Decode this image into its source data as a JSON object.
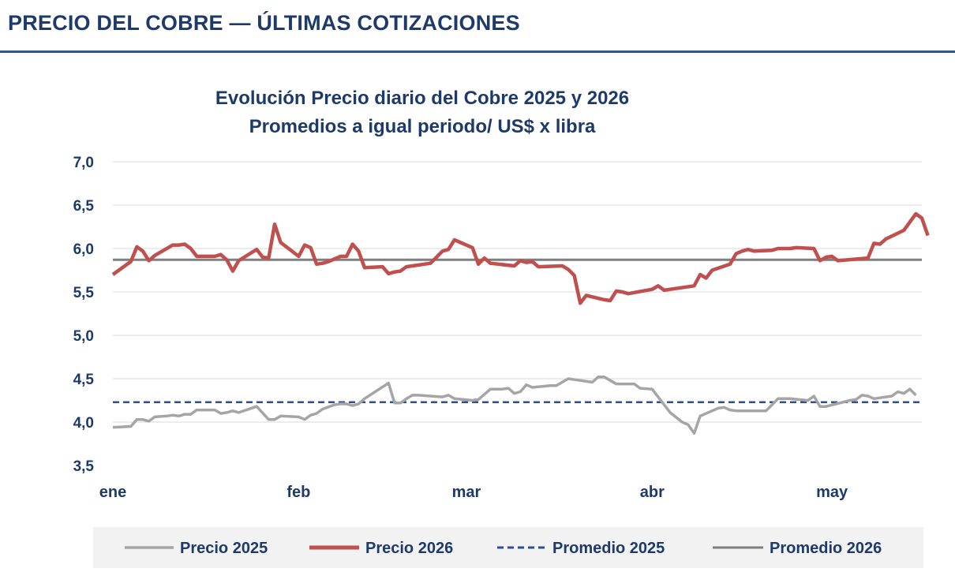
{
  "page": {
    "title": "PRECIO DEL COBRE — ÚLTIMAS COTIZACIONES"
  },
  "chart_data": {
    "type": "line",
    "title": "Evolución Precio diario del Cobre 2025 y 2026",
    "subtitle": "Promedios a igual periodo/ US$ x libra",
    "ylim": [
      3.5,
      7.0
    ],
    "yticks": [
      "3,5",
      "4,0",
      "4,5",
      "5,0",
      "5,5",
      "6,0",
      "6,5",
      "7,0"
    ],
    "ytick_values": [
      3.5,
      4.0,
      4.5,
      5.0,
      5.5,
      6.0,
      6.5,
      7.0
    ],
    "x_range": [
      1,
      136
    ],
    "xticks": [
      {
        "label": "ene",
        "x": 1
      },
      {
        "label": "feb",
        "x": 32
      },
      {
        "label": "mar",
        "x": 60
      },
      {
        "label": "abr",
        "x": 91
      },
      {
        "label": "may",
        "x": 121
      }
    ],
    "grid": true,
    "legend_position": "bottom",
    "colors": {
      "precio_2025": "#a5a5a5",
      "precio_2026": "#c0504d",
      "promedio_2025": "#2f4f8f",
      "promedio_2026": "#7f7f7f",
      "text": "#1d3a6b",
      "grid": "#d9d9d9",
      "legend_bg": "#f2f2f2"
    },
    "series": [
      {
        "name": "Precio 2025",
        "points": [
          [
            1,
            3.94
          ],
          [
            4,
            3.95
          ],
          [
            5,
            4.03
          ],
          [
            6,
            4.03
          ],
          [
            7,
            4.01
          ],
          [
            8,
            4.06
          ],
          [
            10,
            4.07
          ],
          [
            11,
            4.08
          ],
          [
            12,
            4.07
          ],
          [
            13,
            4.09
          ],
          [
            14,
            4.09
          ],
          [
            15,
            4.14
          ],
          [
            18,
            4.14
          ],
          [
            19,
            4.1
          ],
          [
            20,
            4.11
          ],
          [
            21,
            4.13
          ],
          [
            22,
            4.11
          ],
          [
            25,
            4.18
          ],
          [
            27,
            4.03
          ],
          [
            28,
            4.03
          ],
          [
            29,
            4.07
          ],
          [
            32,
            4.06
          ],
          [
            33,
            4.03
          ],
          [
            34,
            4.08
          ],
          [
            35,
            4.1
          ],
          [
            36,
            4.15
          ],
          [
            38,
            4.2
          ],
          [
            39,
            4.21
          ],
          [
            40,
            4.21
          ],
          [
            41,
            4.19
          ],
          [
            42,
            4.21
          ],
          [
            43,
            4.27
          ],
          [
            47,
            4.45
          ],
          [
            48,
            4.22
          ],
          [
            49,
            4.22
          ],
          [
            50,
            4.27
          ],
          [
            51,
            4.31
          ],
          [
            52,
            4.31
          ],
          [
            56,
            4.29
          ],
          [
            57,
            4.31
          ],
          [
            58,
            4.27
          ],
          [
            61,
            4.25
          ],
          [
            62,
            4.26
          ],
          [
            64,
            4.38
          ],
          [
            66,
            4.38
          ],
          [
            67,
            4.39
          ],
          [
            68,
            4.33
          ],
          [
            69,
            4.35
          ],
          [
            70,
            4.43
          ],
          [
            71,
            4.4
          ],
          [
            74,
            4.42
          ],
          [
            75,
            4.42
          ],
          [
            76,
            4.46
          ],
          [
            77,
            4.5
          ],
          [
            80,
            4.47
          ],
          [
            81,
            4.46
          ],
          [
            82,
            4.52
          ],
          [
            83,
            4.52
          ],
          [
            85,
            4.44
          ],
          [
            88,
            4.44
          ],
          [
            89,
            4.39
          ],
          [
            91,
            4.38
          ],
          [
            94,
            4.11
          ],
          [
            96,
            4.0
          ],
          [
            97,
            3.97
          ],
          [
            98,
            3.87
          ],
          [
            99,
            4.07
          ],
          [
            102,
            4.16
          ],
          [
            103,
            4.17
          ],
          [
            104,
            4.14
          ],
          [
            105,
            4.13
          ],
          [
            106,
            4.13
          ],
          [
            110,
            4.13
          ],
          [
            111,
            4.2
          ],
          [
            112,
            4.27
          ],
          [
            114,
            4.27
          ],
          [
            117,
            4.25
          ],
          [
            118,
            4.3
          ],
          [
            119,
            4.18
          ],
          [
            120,
            4.18
          ],
          [
            124,
            4.25
          ],
          [
            125,
            4.26
          ],
          [
            126,
            4.31
          ],
          [
            127,
            4.3
          ],
          [
            128,
            4.27
          ],
          [
            131,
            4.3
          ],
          [
            132,
            4.35
          ],
          [
            133,
            4.33
          ],
          [
            134,
            4.38
          ],
          [
            135,
            4.31
          ]
        ]
      },
      {
        "name": "Precio 2026",
        "points": [
          [
            1,
            5.7
          ],
          [
            4,
            5.85
          ],
          [
            5,
            6.02
          ],
          [
            6,
            5.97
          ],
          [
            7,
            5.86
          ],
          [
            8,
            5.92
          ],
          [
            11,
            6.04
          ],
          [
            12,
            6.04
          ],
          [
            13,
            6.05
          ],
          [
            14,
            6.0
          ],
          [
            15,
            5.91
          ],
          [
            18,
            5.91
          ],
          [
            19,
            5.93
          ],
          [
            20,
            5.87
          ],
          [
            21,
            5.74
          ],
          [
            22,
            5.86
          ],
          [
            25,
            5.99
          ],
          [
            26,
            5.9
          ],
          [
            27,
            5.89
          ],
          [
            28,
            6.28
          ],
          [
            29,
            6.07
          ],
          [
            32,
            5.91
          ],
          [
            33,
            6.04
          ],
          [
            34,
            6.01
          ],
          [
            35,
            5.82
          ],
          [
            36,
            5.83
          ],
          [
            37,
            5.85
          ],
          [
            38,
            5.88
          ],
          [
            39,
            5.91
          ],
          [
            40,
            5.91
          ],
          [
            41,
            6.05
          ],
          [
            42,
            5.97
          ],
          [
            43,
            5.78
          ],
          [
            46,
            5.79
          ],
          [
            47,
            5.71
          ],
          [
            48,
            5.73
          ],
          [
            49,
            5.74
          ],
          [
            50,
            5.79
          ],
          [
            54,
            5.83
          ],
          [
            56,
            5.97
          ],
          [
            57,
            5.99
          ],
          [
            58,
            6.1
          ],
          [
            61,
            6.01
          ],
          [
            62,
            5.82
          ],
          [
            63,
            5.89
          ],
          [
            64,
            5.83
          ],
          [
            68,
            5.8
          ],
          [
            69,
            5.86
          ],
          [
            70,
            5.84
          ],
          [
            71,
            5.85
          ],
          [
            72,
            5.79
          ],
          [
            76,
            5.8
          ],
          [
            77,
            5.76
          ],
          [
            78,
            5.69
          ],
          [
            79,
            5.37
          ],
          [
            80,
            5.46
          ],
          [
            83,
            5.41
          ],
          [
            84,
            5.4
          ],
          [
            85,
            5.51
          ],
          [
            86,
            5.5
          ],
          [
            87,
            5.48
          ],
          [
            91,
            5.53
          ],
          [
            92,
            5.57
          ],
          [
            93,
            5.52
          ],
          [
            98,
            5.57
          ],
          [
            99,
            5.7
          ],
          [
            100,
            5.66
          ],
          [
            101,
            5.75
          ],
          [
            104,
            5.82
          ],
          [
            105,
            5.94
          ],
          [
            106,
            5.97
          ],
          [
            107,
            5.99
          ],
          [
            108,
            5.97
          ],
          [
            111,
            5.98
          ],
          [
            112,
            6.0
          ],
          [
            114,
            6.0
          ],
          [
            115,
            6.01
          ],
          [
            118,
            6.0
          ],
          [
            119,
            5.86
          ],
          [
            120,
            5.9
          ],
          [
            121,
            5.91
          ],
          [
            122,
            5.86
          ],
          [
            127,
            5.89
          ],
          [
            128,
            6.06
          ],
          [
            129,
            6.05
          ],
          [
            130,
            6.11
          ],
          [
            133,
            6.21
          ],
          [
            135,
            6.4
          ],
          [
            136,
            6.35
          ],
          [
            137,
            6.15
          ]
        ]
      },
      {
        "name": "Promedio 2025",
        "value": 4.23
      },
      {
        "name": "Promedio 2026",
        "value": 5.87
      }
    ]
  }
}
